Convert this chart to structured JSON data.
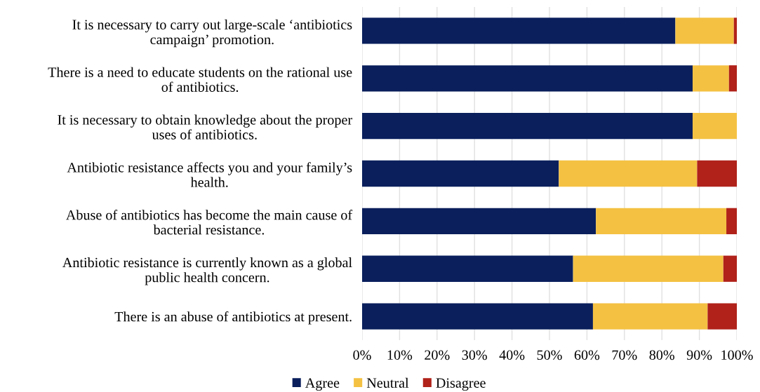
{
  "chart_data": {
    "type": "bar",
    "orientation": "horizontal",
    "stacked": true,
    "categories": [
      "It is necessary to carry out large-scale ‘antibiotics\ncampaign’ promotion.",
      "There is a need to educate students on the rational use\nof antibiotics.",
      "It is necessary to obtain knowledge about the proper\nuses of antibiotics.",
      "Antibiotic resistance affects you and your family’s\nhealth.",
      "Abuse of antibiotics has become the main cause of\nbacterial resistance.",
      "Antibiotic resistance is currently known as a global\npublic health concern.",
      "There is an abuse of antibiotics at present."
    ],
    "series": [
      {
        "name": "Agree",
        "color": "#0a1f5c",
        "values": [
          83.6,
          88.2,
          88.2,
          52.5,
          62.4,
          56.3,
          61.6
        ]
      },
      {
        "name": "Neutral",
        "color": "#f4c142",
        "values": [
          15.6,
          9.7,
          11.8,
          36.9,
          34.8,
          40.1,
          30.6
        ]
      },
      {
        "name": "Disagree",
        "color": "#b0221a",
        "values": [
          0.8,
          2.1,
          0,
          10.6,
          2.8,
          3.6,
          7.8
        ]
      }
    ],
    "xlim": [
      0,
      100
    ],
    "xticks": [
      {
        "value": 0,
        "label": "0%"
      },
      {
        "value": 10,
        "label": "10%"
      },
      {
        "value": 20,
        "label": "20%"
      },
      {
        "value": 30,
        "label": "30%"
      },
      {
        "value": 40,
        "label": "40%"
      },
      {
        "value": 50,
        "label": "50%"
      },
      {
        "value": 60,
        "label": "60%"
      },
      {
        "value": 70,
        "label": "70%"
      },
      {
        "value": 80,
        "label": "80%"
      },
      {
        "value": 90,
        "label": "90%"
      },
      {
        "value": 100,
        "label": "100%"
      }
    ],
    "grid": "x",
    "legend": "bottom left"
  }
}
